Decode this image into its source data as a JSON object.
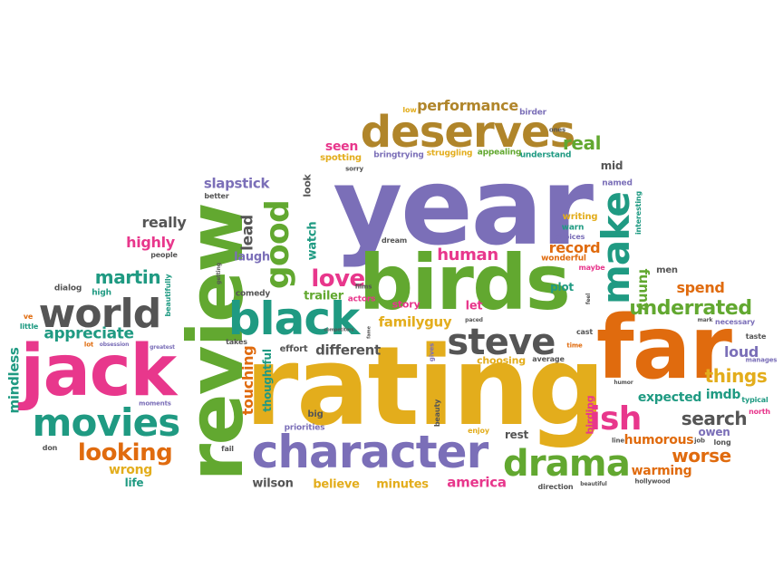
{
  "palette": {
    "purple": "#7b6fb8",
    "green": "#62a830",
    "gold": "#e3ad1c",
    "orange": "#e06b0e",
    "pink": "#e8378c",
    "teal": "#1f9a82",
    "gray": "#555555",
    "brown": "#b0852a"
  },
  "words": [
    {
      "text": "year",
      "color": "purple"
    },
    {
      "text": "rating",
      "color": "gold"
    },
    {
      "text": "review",
      "color": "green"
    },
    {
      "text": "far",
      "color": "orange"
    },
    {
      "text": "birds",
      "color": "green"
    },
    {
      "text": "jack",
      "color": "pink"
    },
    {
      "text": "deserves",
      "color": "brown"
    },
    {
      "text": "character",
      "color": "purple"
    },
    {
      "text": "black",
      "color": "teal"
    },
    {
      "text": "world",
      "color": "gray"
    },
    {
      "text": "movies",
      "color": "teal"
    },
    {
      "text": "steve",
      "color": "gray"
    },
    {
      "text": "drama",
      "color": "green"
    },
    {
      "text": "make",
      "color": "teal"
    },
    {
      "text": "good",
      "color": "green"
    },
    {
      "text": "ish",
      "color": "pink"
    },
    {
      "text": "love",
      "color": "pink"
    },
    {
      "text": "looking",
      "color": "orange"
    },
    {
      "text": "underrated",
      "color": "green"
    },
    {
      "text": "performance",
      "color": "brown"
    },
    {
      "text": "real",
      "color": "green"
    },
    {
      "text": "human",
      "color": "pink"
    },
    {
      "text": "martin",
      "color": "teal"
    },
    {
      "text": "appreciate",
      "color": "teal"
    },
    {
      "text": "search",
      "color": "gray"
    },
    {
      "text": "things",
      "color": "gold"
    },
    {
      "text": "worse",
      "color": "orange"
    },
    {
      "text": "touching",
      "color": "orange"
    },
    {
      "text": "lead",
      "color": "gray"
    },
    {
      "text": "slapstick",
      "color": "purple"
    },
    {
      "text": "really",
      "color": "gray"
    },
    {
      "text": "highly",
      "color": "pink"
    },
    {
      "text": "mindless",
      "color": "teal"
    },
    {
      "text": "familyguy",
      "color": "gold"
    },
    {
      "text": "different",
      "color": "gray"
    },
    {
      "text": "record",
      "color": "orange"
    },
    {
      "text": "spend",
      "color": "orange"
    },
    {
      "text": "funny",
      "color": "green"
    },
    {
      "text": "imdb",
      "color": "teal"
    },
    {
      "text": "loud",
      "color": "purple"
    },
    {
      "text": "expected",
      "color": "teal"
    },
    {
      "text": "humorous",
      "color": "orange"
    },
    {
      "text": "warming",
      "color": "orange"
    },
    {
      "text": "america",
      "color": "pink"
    },
    {
      "text": "minutes",
      "color": "gold"
    },
    {
      "text": "believe",
      "color": "gold"
    },
    {
      "text": "wilson",
      "color": "gray"
    },
    {
      "text": "wrong",
      "color": "gold"
    },
    {
      "text": "life",
      "color": "teal"
    },
    {
      "text": "seen",
      "color": "pink"
    },
    {
      "text": "watch",
      "color": "teal"
    },
    {
      "text": "trailer",
      "color": "green"
    },
    {
      "text": "laugh",
      "color": "purple"
    },
    {
      "text": "thoughtful",
      "color": "teal"
    },
    {
      "text": "plot",
      "color": "teal"
    },
    {
      "text": "let",
      "color": "pink"
    },
    {
      "text": "story",
      "color": "pink"
    },
    {
      "text": "choosing",
      "color": "gold"
    },
    {
      "text": "rest",
      "color": "gray"
    },
    {
      "text": "birding",
      "color": "pink"
    },
    {
      "text": "owen",
      "color": "purple"
    },
    {
      "text": "mid",
      "color": "gray"
    },
    {
      "text": "look",
      "color": "gray"
    },
    {
      "text": "spotting",
      "color": "gold"
    },
    {
      "text": "bringtrying",
      "color": "purple"
    },
    {
      "text": "struggling",
      "color": "gold"
    },
    {
      "text": "appealing",
      "color": "green"
    },
    {
      "text": "understand",
      "color": "teal"
    },
    {
      "text": "birder",
      "color": "purple"
    },
    {
      "text": "low",
      "color": "gold"
    },
    {
      "text": "named",
      "color": "purple"
    },
    {
      "text": "writing",
      "color": "gold"
    },
    {
      "text": "interesting",
      "color": "teal"
    },
    {
      "text": "warn",
      "color": "teal"
    },
    {
      "text": "choices",
      "color": "purple"
    },
    {
      "text": "wonderful",
      "color": "orange"
    },
    {
      "text": "maybe",
      "color": "pink"
    },
    {
      "text": "men",
      "color": "gray"
    },
    {
      "text": "dream",
      "color": "gray"
    },
    {
      "text": "comedy",
      "color": "gray"
    },
    {
      "text": "actors",
      "color": "pink"
    },
    {
      "text": "effort",
      "color": "gray"
    },
    {
      "text": "big",
      "color": "gray"
    },
    {
      "text": "priorities",
      "color": "purple"
    },
    {
      "text": "people",
      "color": "gray"
    },
    {
      "text": "better",
      "color": "gray"
    },
    {
      "text": "dialog",
      "color": "gray"
    },
    {
      "text": "high",
      "color": "teal"
    },
    {
      "text": "beautifully",
      "color": "teal"
    },
    {
      "text": "ve",
      "color": "orange"
    },
    {
      "text": "little",
      "color": "teal"
    },
    {
      "text": "lot",
      "color": "orange"
    },
    {
      "text": "obsession",
      "color": "purple"
    },
    {
      "text": "greatest",
      "color": "purple"
    },
    {
      "text": "takes",
      "color": "gray"
    },
    {
      "text": "moments",
      "color": "purple"
    },
    {
      "text": "fail",
      "color": "gray"
    },
    {
      "text": "don",
      "color": "gray"
    },
    {
      "text": "gives",
      "color": "purple"
    },
    {
      "text": "beauty",
      "color": "gray"
    },
    {
      "text": "enjoy",
      "color": "gold"
    },
    {
      "text": "average",
      "color": "gray"
    },
    {
      "text": "time",
      "color": "orange"
    },
    {
      "text": "cast",
      "color": "gray"
    },
    {
      "text": "humor",
      "color": "gray"
    },
    {
      "text": "line",
      "color": "gray"
    },
    {
      "text": "job",
      "color": "gray"
    },
    {
      "text": "long",
      "color": "gray"
    },
    {
      "text": "direction",
      "color": "gray"
    },
    {
      "text": "beautiful",
      "color": "gray"
    },
    {
      "text": "hollywood",
      "color": "gray"
    },
    {
      "text": "necessary",
      "color": "purple"
    },
    {
      "text": "taste",
      "color": "gray"
    },
    {
      "text": "manages",
      "color": "purple"
    },
    {
      "text": "typical",
      "color": "teal"
    },
    {
      "text": "north",
      "color": "pink"
    },
    {
      "text": "mark",
      "color": "gray"
    },
    {
      "text": "ones",
      "color": "gray"
    },
    {
      "text": "films",
      "color": "gray"
    },
    {
      "text": "sorry",
      "color": "gray"
    },
    {
      "text": "paced",
      "color": "gray"
    },
    {
      "text": "feel",
      "color": "gray"
    },
    {
      "text": "competitors",
      "color": "gray"
    },
    {
      "text": "getting",
      "color": "gray"
    },
    {
      "text": "fame",
      "color": "gray"
    }
  ]
}
